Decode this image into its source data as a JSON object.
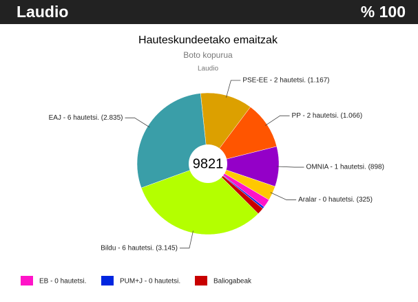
{
  "header": {
    "title": "Laudio",
    "percent": "% 100"
  },
  "chart_data": {
    "type": "pie",
    "title": "Hauteskundeetako emaitzak",
    "subtitle": "Boto kopurua",
    "place": "Laudio",
    "total": "9821",
    "slices": [
      {
        "label": "PSE-EE - 2 hautetsi. (1.167)",
        "value": 1167,
        "color": "#dca000"
      },
      {
        "label": "PP - 2 hautetsi. (1.066)",
        "value": 1066,
        "color": "#ff5500"
      },
      {
        "label": "OMNIA - 1 hautetsi. (898)",
        "value": 898,
        "color": "#9400c8"
      },
      {
        "label": "Aralar - 0 hautetsi. (325)",
        "value": 325,
        "color": "#ffc800"
      },
      {
        "legend": "EB - 0 hautetsi.",
        "value": 190,
        "color": "#ff14c8"
      },
      {
        "legend": "PUM+J - 0 hautetsi.",
        "value": 45,
        "color": "#0026e0"
      },
      {
        "legend": "Baliogabeak",
        "value": 150,
        "color": "#c80000"
      },
      {
        "label": "Bildu - 6 hautetsi. (3.145)",
        "value": 3145,
        "color": "#b4ff00"
      },
      {
        "label": "EAJ - 6 hautetsi. (2.835)",
        "value": 2835,
        "color": "#3a9ea8"
      }
    ]
  }
}
